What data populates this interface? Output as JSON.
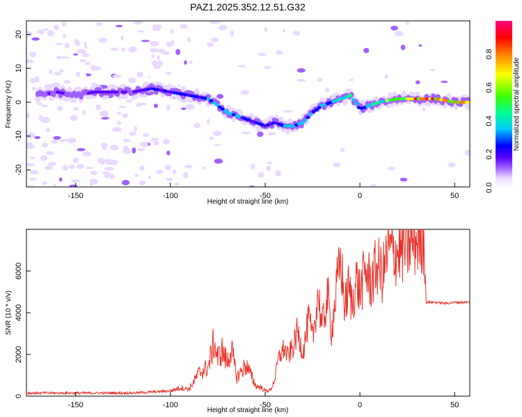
{
  "title": "PAZ1.2025.352.12.51.G32",
  "chart_data": [
    {
      "type": "heatmap",
      "title": "PAZ1.2025.352.12.51.G32",
      "xlabel": "Height of straight line (km)",
      "ylabel": "Frequency (Hz)",
      "xlim": [
        -176,
        58
      ],
      "ylim": [
        -25,
        24
      ],
      "xticks": [
        -150,
        -100,
        -50,
        0,
        50
      ],
      "yticks": [
        -20,
        -10,
        0,
        10,
        20
      ],
      "ridge_x": [
        -170,
        -160,
        -150,
        -140,
        -130,
        -120,
        -110,
        -100,
        -90,
        -80,
        -75,
        -70,
        -65,
        -60,
        -55,
        -50,
        -45,
        -40,
        -35,
        -30,
        -25,
        -20,
        -15,
        -10,
        -5,
        0,
        5,
        10,
        20,
        30,
        40,
        50,
        58
      ],
      "ridge_y": [
        2,
        3,
        2,
        3,
        3,
        3,
        4,
        3,
        2,
        1,
        -1,
        -3,
        -4,
        -5,
        -6,
        -7,
        -6,
        -7,
        -7,
        -6,
        -3,
        -1,
        0,
        1,
        2,
        -2,
        -1,
        0,
        1,
        1,
        1,
        0,
        0
      ],
      "ridge_amp": [
        0.2,
        0.25,
        0.2,
        0.3,
        0.3,
        0.25,
        0.35,
        0.4,
        0.35,
        0.4,
        0.45,
        0.5,
        0.45,
        0.4,
        0.35,
        0.35,
        0.4,
        0.45,
        0.5,
        0.45,
        0.4,
        0.45,
        0.5,
        0.5,
        0.6,
        0.4,
        0.5,
        0.6,
        0.8,
        0.9,
        0.95,
        0.9,
        0.85
      ],
      "colorbar": {
        "label": "Normalized spectral amplitude",
        "range": [
          0.0,
          1.0
        ],
        "ticks": [
          "0.0",
          "0.2",
          "0.4",
          "0.6",
          "0.8"
        ],
        "colors": [
          "#ffffff",
          "#e9d8ff",
          "#a060ff",
          "#5a00ff",
          "#0000ff",
          "#00c8ff",
          "#00ff90",
          "#40ff00",
          "#ffff00",
          "#ff8000",
          "#ff0000",
          "#ff0080"
        ]
      }
    },
    {
      "type": "line",
      "xlabel": "Height of straight line (km)",
      "ylabel": "SNR (10 * v/v)",
      "xlim": [
        -176,
        58
      ],
      "ylim": [
        0,
        8000
      ],
      "xticks": [
        -150,
        -100,
        -50,
        0,
        50
      ],
      "yticks": [
        0,
        2000,
        4000,
        6000
      ],
      "series": [
        {
          "name": "SNR",
          "color": "#e8332a",
          "x": [
            -176,
            -160,
            -140,
            -120,
            -100,
            -95,
            -90,
            -85,
            -80,
            -77,
            -75,
            -73,
            -70,
            -68,
            -65,
            -60,
            -55,
            -52,
            -50,
            -47,
            -45,
            -43,
            -40,
            -38,
            -35,
            -33,
            -30,
            -27,
            -25,
            -22,
            -20,
            -17,
            -15,
            -12,
            -10,
            -8,
            -6,
            -4,
            -2,
            0,
            3,
            6,
            9,
            12,
            15,
            20,
            25,
            30,
            34,
            35,
            40,
            45,
            50,
            58
          ],
          "y": [
            150,
            150,
            150,
            150,
            250,
            400,
            350,
            1100,
            1400,
            2600,
            1800,
            2200,
            1600,
            2300,
            900,
            1500,
            500,
            400,
            250,
            300,
            800,
            1800,
            2300,
            1900,
            2400,
            3100,
            2100,
            3700,
            2700,
            5000,
            3300,
            4800,
            3100,
            5400,
            6500,
            4200,
            5200,
            4400,
            5600,
            5000,
            6000,
            5400,
            6300,
            5800,
            7000,
            6900,
            7200,
            7500,
            7700,
            4500,
            4500,
            4450,
            4500,
            4500
          ]
        }
      ]
    }
  ]
}
